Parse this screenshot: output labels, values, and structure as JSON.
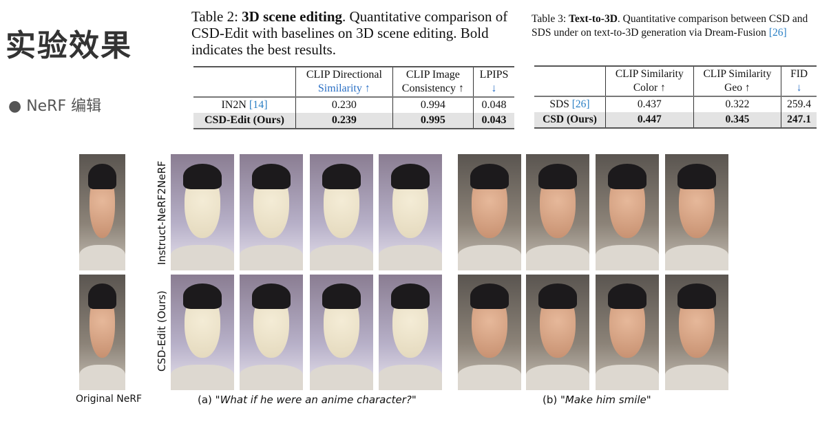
{
  "slide": {
    "title": "实验效果",
    "bullet": "● NeRF 编辑"
  },
  "table2": {
    "caption_prefix": "Table 2: ",
    "caption_bold": "3D scene editing",
    "caption_rest": ". Quantitative comparison of CSD-Edit with baselines on 3D scene editing. Bold indicates the best results.",
    "headers": [
      [
        "CLIP Directional",
        "Similarity ↑"
      ],
      [
        "CLIP Image",
        "Consistency ↑"
      ],
      [
        "LPIPS",
        "↓"
      ]
    ],
    "rows": [
      {
        "method": "IN2N ",
        "ref": "[14]",
        "values": [
          "0.230",
          "0.994",
          "0.048"
        ]
      },
      {
        "method": "CSD-Edit (Ours)",
        "ref": "",
        "values": [
          "0.239",
          "0.995",
          "0.043"
        ],
        "best": true
      }
    ]
  },
  "table3": {
    "caption_prefix": "Table 3: ",
    "caption_bold": "Text-to-3D",
    "caption_rest": ". Quantitative comparison between CSD and SDS under on text-to-3D generation via Dream-Fusion ",
    "caption_ref": "[26]",
    "headers": [
      [
        "CLIP Similarity",
        "Color ↑"
      ],
      [
        "CLIP Similarity",
        "Geo ↑"
      ],
      [
        "FID",
        "↓"
      ]
    ],
    "rows": [
      {
        "method": "SDS ",
        "ref": "[26]",
        "values": [
          "0.437",
          "0.322",
          "259.4"
        ]
      },
      {
        "method": "CSD (Ours)",
        "ref": "",
        "values": [
          "0.447",
          "0.345",
          "247.1"
        ],
        "best": true
      }
    ]
  },
  "figure": {
    "row_labels": [
      "Instruct-NeRF2NeRF",
      "CSD-Edit (Ours)"
    ],
    "original_label": "Original NeRF",
    "caption_a_prefix": "(a) ",
    "caption_a": "\"What if he were an anime character?\"",
    "caption_b_prefix": "(b) ",
    "caption_b": "\"Make him smile\""
  }
}
